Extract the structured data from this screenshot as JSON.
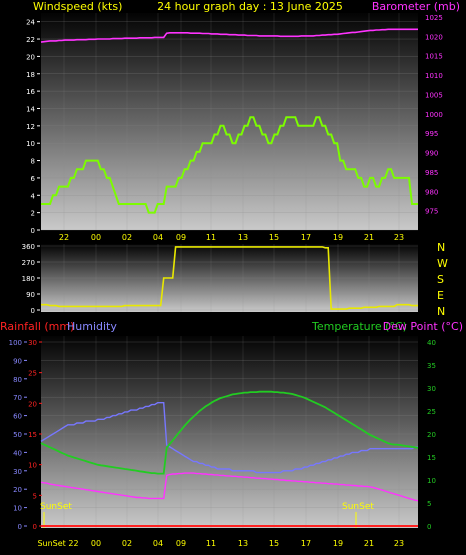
{
  "colors": {
    "wind": "#7CFC00",
    "baro": "#FF33FF",
    "dir": "#E8E800",
    "temp": "#22CC22",
    "dew": "#FF33FF",
    "humidity": "#7777FF",
    "rain": "#FF2222",
    "label_yellow": "#FFFF00",
    "label_blue": "#8888FF"
  },
  "x_hour_labels": [
    "22",
    "00",
    "02",
    "04",
    "09",
    "11",
    "13",
    "15",
    "17",
    "19",
    "21",
    "23"
  ],
  "bottom_x_labels": [
    "SunSet 22",
    "00",
    "02",
    "04",
    "09",
    "11",
    "13",
    "15",
    "17",
    "19",
    "21",
    "23"
  ],
  "panel1": {
    "left_title": "Windspeed (kts)",
    "title": "24 hour graph day : 13 June 2025",
    "right_title": "Barometer (mb)",
    "chart_data": {
      "type": "line",
      "wind_axis": {
        "range": [
          0,
          25
        ],
        "ticks": [
          "0",
          "2",
          "4",
          "6",
          "8",
          "10",
          "12",
          "14",
          "16",
          "18",
          "20",
          "22",
          "24"
        ]
      },
      "baro_axis": {
        "range": [
          970,
          1026
        ],
        "ticks": [
          "975",
          "980",
          "985",
          "990",
          "995",
          "1000",
          "1005",
          "1010",
          "1015",
          "1020",
          "1025"
        ]
      },
      "wind_speed_kts": [
        3,
        3,
        3,
        3,
        4,
        4,
        5,
        5,
        5,
        5,
        6,
        6,
        7,
        7,
        7,
        8,
        8,
        8,
        8,
        8,
        7,
        7,
        6,
        6,
        5,
        4,
        3,
        3,
        3,
        3,
        3,
        3,
        3,
        3,
        3,
        3,
        2,
        2,
        2,
        3,
        3,
        3,
        5,
        5,
        5,
        5,
        6,
        6,
        7,
        7,
        8,
        8,
        9,
        9,
        10,
        10,
        10,
        10,
        11,
        11,
        12,
        12,
        11,
        11,
        10,
        10,
        11,
        11,
        12,
        12,
        13,
        13,
        12,
        12,
        11,
        11,
        10,
        10,
        11,
        11,
        12,
        12,
        13,
        13,
        13,
        13,
        12,
        12,
        12,
        12,
        12,
        12,
        13,
        13,
        12,
        12,
        11,
        11,
        10,
        10,
        8,
        8,
        7,
        7,
        7,
        7,
        6,
        6,
        5,
        5,
        6,
        6,
        5,
        5,
        6,
        6,
        7,
        7,
        6,
        6,
        6,
        6,
        6,
        6,
        3,
        3,
        3
      ],
      "barometer_mb": [
        1018.5,
        1018.6,
        1018.7,
        1018.8,
        1018.8,
        1018.8,
        1018.9,
        1018.9,
        1019,
        1019,
        1019,
        1019,
        1019.1,
        1019.1,
        1019.1,
        1019.1,
        1019.2,
        1019.2,
        1019.2,
        1019.3,
        1019.3,
        1019.3,
        1019.3,
        1019.3,
        1019.4,
        1019.4,
        1019.4,
        1019.4,
        1019.5,
        1019.5,
        1019.5,
        1019.5,
        1019.5,
        1019.6,
        1019.6,
        1019.6,
        1019.6,
        1019.6,
        1019.7,
        1019.7,
        1019.7,
        1019.7,
        1020.8,
        1020.9,
        1020.9,
        1020.9,
        1020.9,
        1020.9,
        1020.9,
        1020.9,
        1020.8,
        1020.8,
        1020.8,
        1020.8,
        1020.7,
        1020.7,
        1020.7,
        1020.6,
        1020.6,
        1020.6,
        1020.5,
        1020.5,
        1020.5,
        1020.4,
        1020.4,
        1020.4,
        1020.3,
        1020.3,
        1020.3,
        1020.2,
        1020.2,
        1020.2,
        1020.2,
        1020.1,
        1020.1,
        1020.1,
        1020.1,
        1020.1,
        1020.1,
        1020.1,
        1020,
        1020,
        1020,
        1020,
        1020,
        1020,
        1020,
        1020.1,
        1020.1,
        1020.1,
        1020.1,
        1020.1,
        1020.2,
        1020.2,
        1020.3,
        1020.3,
        1020.4,
        1020.4,
        1020.5,
        1020.5,
        1020.6,
        1020.7,
        1020.8,
        1020.9,
        1021,
        1021,
        1021.1,
        1021.2,
        1021.3,
        1021.4,
        1021.5,
        1021.5,
        1021.6,
        1021.6,
        1021.7,
        1021.7,
        1021.8,
        1021.8,
        1021.8,
        1021.8,
        1021.8,
        1021.8,
        1021.8,
        1021.8,
        1021.8,
        1021.8,
        1021.8
      ]
    }
  },
  "panel2": {
    "compass_labels": [
      "N",
      "W",
      "S",
      "E",
      "N"
    ],
    "chart_data": {
      "type": "line",
      "dir_axis": {
        "range": [
          0,
          360
        ],
        "ticks": [
          "0",
          "90",
          "180",
          "270",
          "360"
        ]
      },
      "wind_direction_deg": [
        30,
        30,
        30,
        25,
        25,
        25,
        20,
        20,
        20,
        20,
        20,
        20,
        20,
        20,
        20,
        20,
        20,
        20,
        20,
        20,
        20,
        20,
        20,
        20,
        20,
        20,
        20,
        20,
        25,
        25,
        25,
        25,
        25,
        25,
        25,
        25,
        25,
        25,
        25,
        25,
        25,
        180,
        180,
        180,
        180,
        355,
        355,
        355,
        355,
        355,
        355,
        355,
        355,
        355,
        355,
        355,
        355,
        355,
        355,
        355,
        355,
        355,
        355,
        355,
        355,
        355,
        355,
        355,
        355,
        355,
        355,
        355,
        355,
        355,
        355,
        355,
        355,
        355,
        355,
        355,
        355,
        355,
        355,
        355,
        355,
        355,
        355,
        355,
        355,
        355,
        355,
        355,
        355,
        355,
        355,
        350,
        350,
        5,
        5,
        5,
        5,
        5,
        5,
        10,
        10,
        10,
        10,
        10,
        15,
        15,
        15,
        15,
        15,
        20,
        20,
        20,
        20,
        20,
        20,
        30,
        30,
        30,
        30,
        30,
        25,
        25,
        25
      ]
    }
  },
  "panel3": {
    "rain_title": "Rainfall (mm)",
    "humidity_title": "Humidity",
    "temp_title": "Temperature (°C)",
    "dew_title": "Dew Point (°C)",
    "sunset_label": "SunSet",
    "chart_data": {
      "type": "line",
      "humidity_axis": {
        "range": [
          0,
          100
        ],
        "ticks": [
          "0",
          "10",
          "20",
          "30",
          "40",
          "50",
          "60",
          "70",
          "80",
          "90",
          "100"
        ]
      },
      "rain_axis": {
        "range": [
          0,
          30
        ],
        "ticks": [
          "0",
          "5",
          "10",
          "15",
          "20",
          "25",
          "30"
        ]
      },
      "temp_axis": {
        "range": [
          0,
          40
        ],
        "ticks": [
          "0",
          "5",
          "10",
          "15",
          "20",
          "25",
          "30",
          "35",
          "40"
        ]
      },
      "humidity_pct": [
        46,
        47,
        48,
        49,
        50,
        51,
        52,
        53,
        54,
        55,
        55,
        55,
        56,
        56,
        56,
        57,
        57,
        57,
        57,
        58,
        58,
        58,
        59,
        59,
        60,
        60,
        61,
        61,
        62,
        62,
        63,
        63,
        63,
        64,
        64,
        65,
        65,
        66,
        66,
        67,
        67,
        67,
        44,
        43,
        42,
        41,
        40,
        39,
        38,
        37,
        36,
        35,
        35,
        34,
        34,
        33,
        33,
        32,
        32,
        31,
        31,
        31,
        31,
        31,
        30,
        30,
        30,
        30,
        30,
        30,
        30,
        30,
        29,
        29,
        29,
        29,
        29,
        29,
        29,
        29,
        29,
        30,
        30,
        30,
        30,
        31,
        31,
        31,
        32,
        32,
        33,
        33,
        34,
        34,
        35,
        35,
        36,
        36,
        37,
        37,
        38,
        38,
        39,
        39,
        40,
        40,
        40,
        41,
        41,
        41,
        42,
        42,
        42,
        42,
        42,
        42,
        42,
        42,
        42,
        42,
        42,
        42,
        42,
        42,
        42,
        43,
        43
      ],
      "temperature_c": [
        18,
        17.7,
        17.4,
        17.1,
        16.8,
        16.5,
        16.2,
        15.9,
        15.6,
        15.3,
        15.1,
        14.9,
        14.7,
        14.5,
        14.3,
        14.1,
        13.9,
        13.7,
        13.5,
        13.3,
        13.2,
        13.1,
        13,
        12.9,
        12.8,
        12.7,
        12.6,
        12.5,
        12.4,
        12.3,
        12.2,
        12.1,
        12,
        11.9,
        11.8,
        11.7,
        11.6,
        11.5,
        11.5,
        11.4,
        11.4,
        11.4,
        17,
        17.8,
        18.6,
        19.4,
        20.2,
        21,
        21.8,
        22.5,
        23.2,
        23.8,
        24.4,
        25,
        25.5,
        26,
        26.4,
        26.8,
        27.2,
        27.5,
        27.8,
        28,
        28.2,
        28.4,
        28.6,
        28.7,
        28.8,
        28.9,
        29,
        29,
        29.1,
        29.1,
        29.1,
        29.2,
        29.2,
        29.2,
        29.2,
        29.2,
        29.1,
        29.1,
        29,
        29,
        28.9,
        28.8,
        28.7,
        28.5,
        28.3,
        28.1,
        27.9,
        27.6,
        27.3,
        27,
        26.7,
        26.4,
        26.1,
        25.8,
        25.4,
        25,
        24.6,
        24.2,
        23.8,
        23.4,
        23,
        22.6,
        22.2,
        21.8,
        21.4,
        21,
        20.6,
        20.2,
        19.8,
        19.5,
        19.2,
        18.9,
        18.6,
        18.3,
        18,
        17.8,
        17.7,
        17.7,
        17.6,
        17.5,
        17.4,
        17.3,
        17.2,
        17.1,
        17
      ],
      "dew_point_c": [
        9.5,
        9.4,
        9.3,
        9.1,
        9,
        8.9,
        8.8,
        8.7,
        8.6,
        8.5,
        8.4,
        8.3,
        8.2,
        8.1,
        8,
        7.9,
        7.8,
        7.7,
        7.6,
        7.5,
        7.4,
        7.3,
        7.2,
        7.1,
        7,
        6.9,
        6.8,
        6.7,
        6.6,
        6.5,
        6.4,
        6.3,
        6.2,
        6.2,
        6.1,
        6.1,
        6,
        6,
        6,
        6,
        6,
        6,
        11,
        11.2,
        11.3,
        11.3,
        11.4,
        11.4,
        11.5,
        11.5,
        11.5,
        11.5,
        11.4,
        11.4,
        11.3,
        11.3,
        11.2,
        11.2,
        11.1,
        11.1,
        11,
        11,
        10.9,
        10.9,
        10.8,
        10.8,
        10.7,
        10.7,
        10.6,
        10.6,
        10.5,
        10.5,
        10.4,
        10.4,
        10.3,
        10.3,
        10.2,
        10.2,
        10.1,
        10.1,
        10,
        10,
        9.9,
        9.9,
        9.8,
        9.8,
        9.7,
        9.7,
        9.6,
        9.6,
        9.5,
        9.5,
        9.4,
        9.4,
        9.3,
        9.3,
        9.2,
        9.2,
        9.1,
        9.1,
        9,
        9,
        8.9,
        8.9,
        8.8,
        8.8,
        8.7,
        8.7,
        8.6,
        8.6,
        8.5,
        8.4,
        8.2,
        8,
        7.8,
        7.6,
        7.4,
        7.2,
        7,
        6.8,
        6.6,
        6.4,
        6.2,
        6,
        5.8,
        5.6,
        5.5
      ],
      "rainfall_mm": [
        0,
        0,
        0,
        0,
        0,
        0,
        0,
        0,
        0,
        0,
        0,
        0,
        0,
        0,
        0,
        0,
        0,
        0,
        0,
        0,
        0,
        0,
        0,
        0,
        0,
        0,
        0,
        0,
        0,
        0,
        0,
        0,
        0,
        0,
        0,
        0,
        0,
        0,
        0,
        0,
        0,
        0,
        0,
        0,
        0,
        0,
        0,
        0,
        0,
        0,
        0,
        0,
        0,
        0,
        0,
        0,
        0,
        0,
        0,
        0,
        0,
        0,
        0,
        0,
        0,
        0,
        0,
        0,
        0,
        0,
        0,
        0,
        0,
        0,
        0,
        0,
        0,
        0,
        0,
        0,
        0,
        0,
        0,
        0,
        0,
        0,
        0,
        0,
        0,
        0,
        0,
        0,
        0,
        0,
        0,
        0,
        0,
        0,
        0,
        0,
        0,
        0,
        0,
        0,
        0,
        0,
        0,
        0,
        0,
        0,
        0,
        0,
        0,
        0,
        0,
        0,
        0,
        0,
        0,
        0,
        0,
        0,
        0,
        0,
        0,
        0,
        0
      ]
    }
  }
}
